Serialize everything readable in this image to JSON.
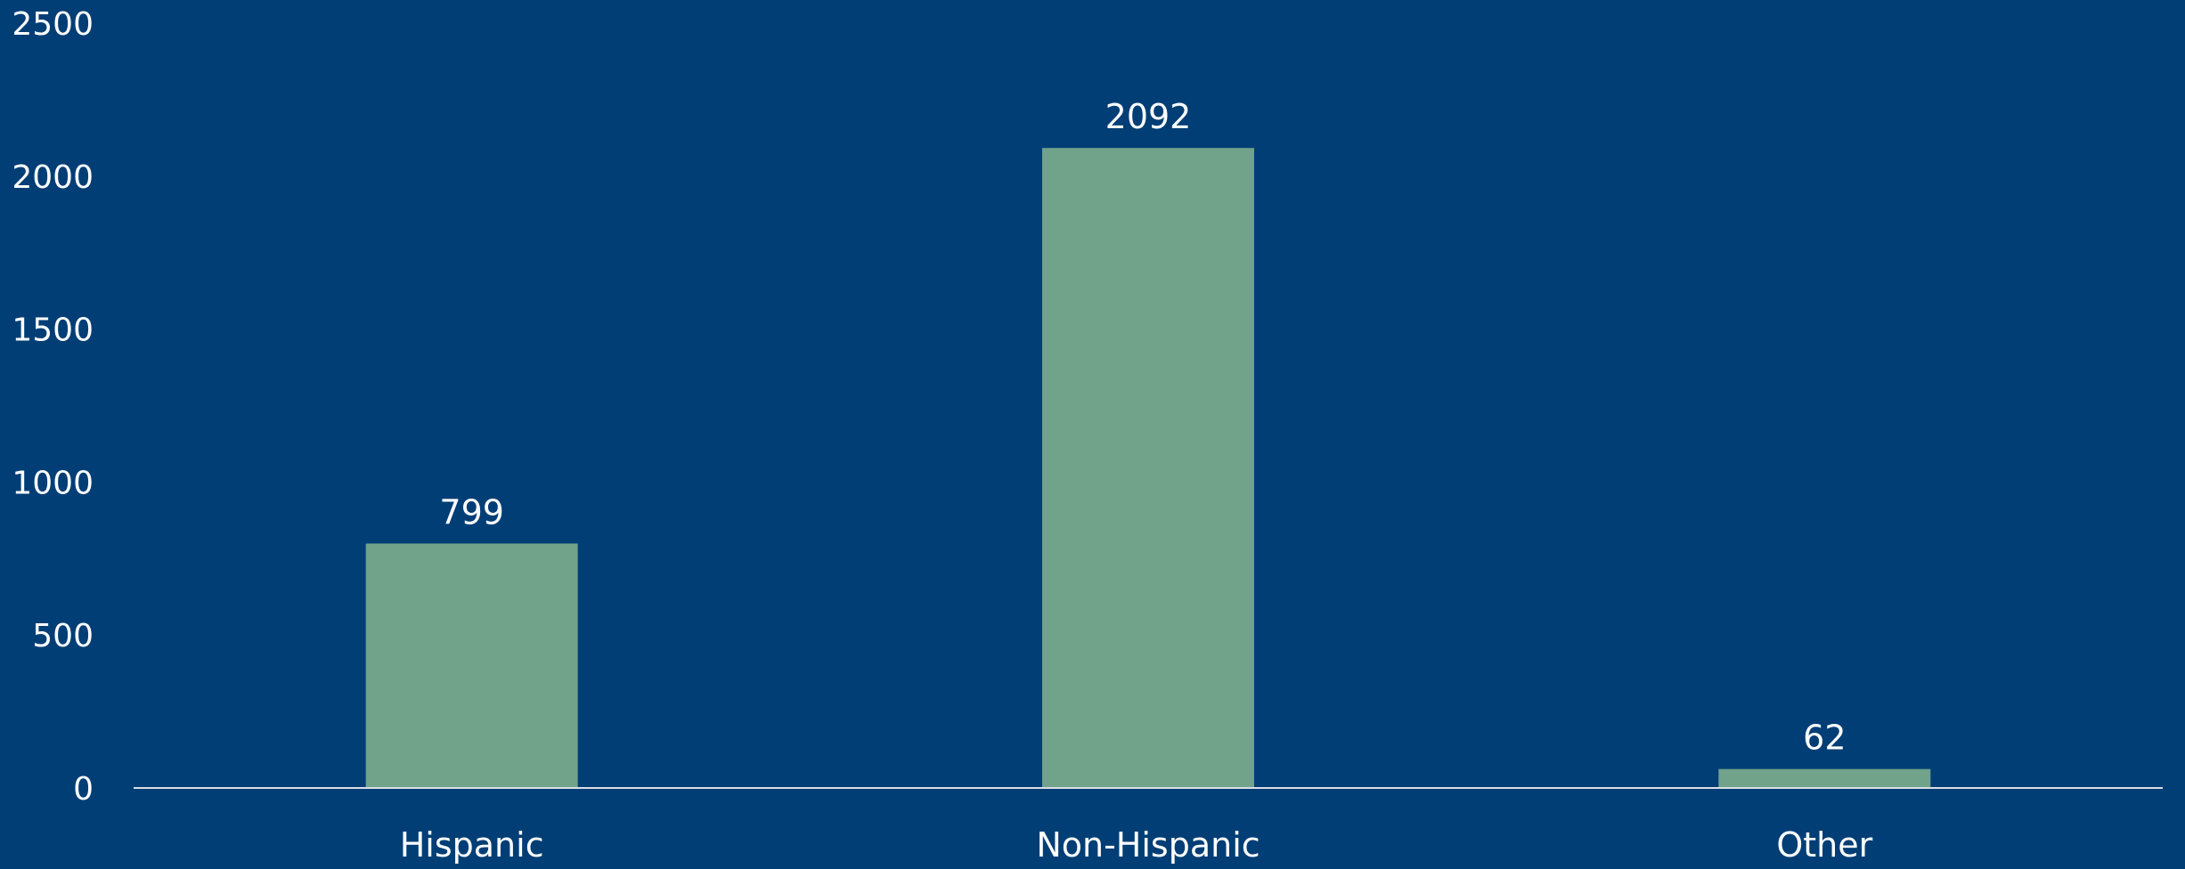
{
  "chart_data": {
    "type": "bar",
    "categories": [
      "Hispanic",
      "Non-Hispanic",
      "Other"
    ],
    "values": [
      799,
      2092,
      62
    ],
    "data_labels": [
      "799",
      "2092",
      "62"
    ],
    "yticks": [
      "0",
      "500",
      "1000",
      "1500",
      "2000",
      "2500"
    ],
    "ylim": [
      0,
      2500
    ],
    "grid": false,
    "legend": "none",
    "title": "",
    "xlabel": "",
    "ylabel": "",
    "colors": {
      "background": "#013e75",
      "bar": "#71a28a",
      "axis": "#d9dee6",
      "text": "#ffffff"
    }
  }
}
